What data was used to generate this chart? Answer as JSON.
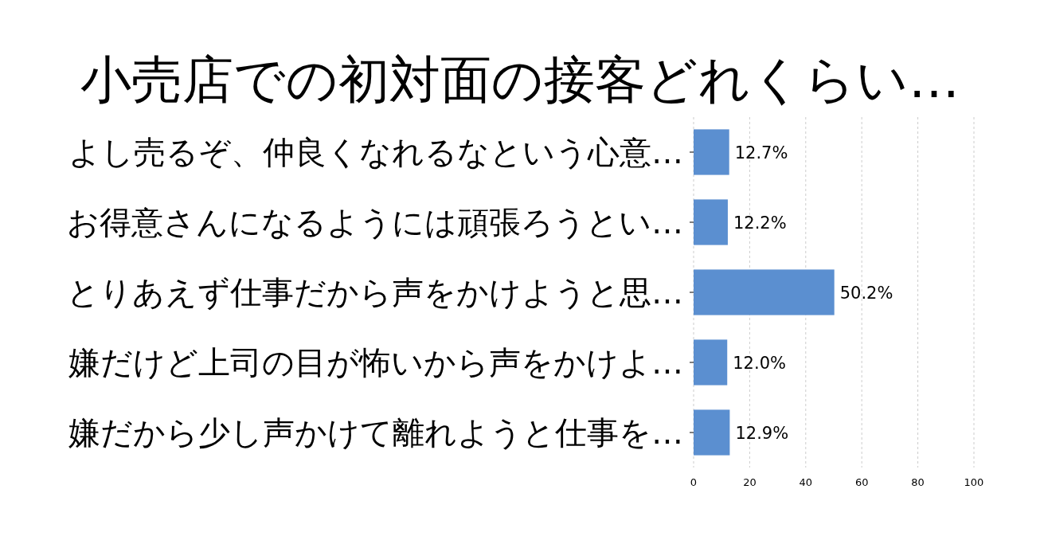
{
  "chart_data": {
    "type": "bar",
    "orientation": "horizontal",
    "title": "小売店での初対面の接客どれくらい…",
    "categories": [
      "よし売るぞ、仲良くなれるなという心意…",
      "お得意さんになるようには頑張ろうとい…",
      "とりあえず仕事だから声をかけようと思…",
      "嫌だけど上司の目が怖いから声をかけよ…",
      "嫌だから少し声かけて離れようと仕事を…"
    ],
    "values": [
      12.7,
      12.2,
      50.2,
      12.0,
      12.9
    ],
    "value_labels": [
      "12.7%",
      "12.2%",
      "50.2%",
      "12.0%",
      "12.9%"
    ],
    "color": "#5b8fd0",
    "xlim": [
      0,
      100
    ],
    "xticks": [
      0,
      20,
      40,
      60,
      80,
      100
    ],
    "grid": "x"
  }
}
